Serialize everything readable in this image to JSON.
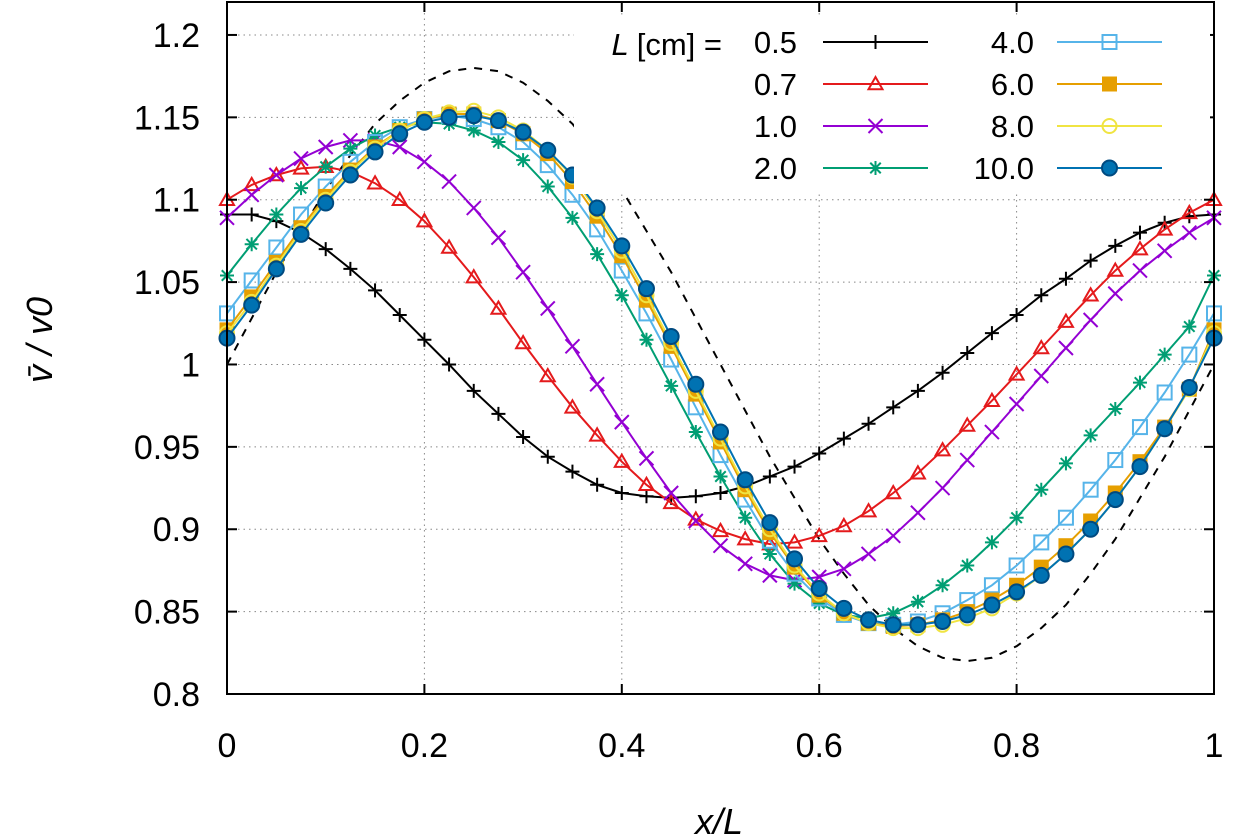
{
  "chart_data": {
    "type": "line",
    "xlabel": "x/L",
    "ylabel": "v̄ / v0",
    "xlim": [
      0,
      1
    ],
    "ylim": [
      0.8,
      1.22
    ],
    "xticks": [
      0,
      0.2,
      0.4,
      0.6,
      0.8,
      1
    ],
    "xtick_labels": [
      "0",
      "0.2",
      "0.4",
      "0.6",
      "0.8",
      "1"
    ],
    "yticks": [
      0.8,
      0.85,
      0.9,
      0.95,
      1,
      1.05,
      1.1,
      1.15,
      1.2
    ],
    "ytick_labels": [
      "0.8",
      "0.85",
      "0.9",
      "0.95",
      "1",
      "1.05",
      "1.1",
      "1.15",
      "1.2"
    ],
    "grid": true,
    "legend": {
      "title_var": "L",
      "title_unit": "[cm] =",
      "placement": "top-right"
    },
    "x": [
      0,
      0.025,
      0.05,
      0.075,
      0.1,
      0.125,
      0.15,
      0.175,
      0.2,
      0.225,
      0.25,
      0.275,
      0.3,
      0.325,
      0.35,
      0.375,
      0.4,
      0.425,
      0.45,
      0.475,
      0.5,
      0.525,
      0.55,
      0.575,
      0.6,
      0.625,
      0.65,
      0.675,
      0.7,
      0.725,
      0.75,
      0.775,
      0.8,
      0.825,
      0.85,
      0.875,
      0.9,
      0.925,
      0.95,
      0.975,
      1
    ],
    "reference": {
      "style": "dashed",
      "color": "#000000",
      "x": [
        0,
        0.025,
        0.05,
        0.075,
        0.1,
        0.125,
        0.15,
        0.175,
        0.2,
        0.225,
        0.25,
        0.275,
        0.3,
        0.325,
        0.35,
        0.375,
        0.4,
        0.425,
        0.45,
        0.475,
        0.5,
        0.525,
        0.55,
        0.575,
        0.6,
        0.625,
        0.65,
        0.675,
        0.7,
        0.725,
        0.75,
        0.775,
        0.8,
        0.825,
        0.85,
        0.875,
        0.9,
        0.925,
        0.95,
        0.975,
        1
      ],
      "values": [
        1.0,
        1.028,
        1.056,
        1.081,
        1.106,
        1.127,
        1.146,
        1.16,
        1.171,
        1.178,
        1.18,
        1.178,
        1.171,
        1.16,
        1.146,
        1.127,
        1.106,
        1.081,
        1.056,
        1.028,
        1.0,
        0.972,
        0.944,
        0.919,
        0.894,
        0.873,
        0.854,
        0.84,
        0.829,
        0.822,
        0.82,
        0.822,
        0.829,
        0.84,
        0.854,
        0.873,
        0.894,
        0.919,
        0.944,
        0.972,
        1.0
      ]
    },
    "series": [
      {
        "name": "0.5",
        "color": "#000000",
        "marker": "plus",
        "values": [
          1.091,
          1.091,
          1.087,
          1.08,
          1.07,
          1.058,
          1.045,
          1.03,
          1.015,
          1.0,
          0.984,
          0.97,
          0.956,
          0.944,
          0.935,
          0.927,
          0.922,
          0.92,
          0.919,
          0.92,
          0.922,
          0.926,
          0.932,
          0.938,
          0.946,
          0.955,
          0.964,
          0.974,
          0.984,
          0.995,
          1.007,
          1.019,
          1.03,
          1.042,
          1.052,
          1.063,
          1.072,
          1.08,
          1.086,
          1.09,
          1.091
        ]
      },
      {
        "name": "0.7",
        "color": "#e41a1c",
        "marker": "triangle",
        "values": [
          1.1,
          1.109,
          1.115,
          1.119,
          1.12,
          1.117,
          1.11,
          1.1,
          1.087,
          1.071,
          1.053,
          1.034,
          1.013,
          0.993,
          0.974,
          0.957,
          0.941,
          0.927,
          0.916,
          0.906,
          0.899,
          0.894,
          0.891,
          0.892,
          0.896,
          0.902,
          0.911,
          0.922,
          0.934,
          0.948,
          0.963,
          0.978,
          0.994,
          1.01,
          1.026,
          1.042,
          1.057,
          1.07,
          1.082,
          1.092,
          1.1
        ]
      },
      {
        "name": "1.0",
        "color": "#9400d3",
        "marker": "x",
        "values": [
          1.089,
          1.103,
          1.115,
          1.125,
          1.132,
          1.136,
          1.136,
          1.132,
          1.123,
          1.111,
          1.095,
          1.077,
          1.056,
          1.034,
          1.011,
          0.988,
          0.965,
          0.943,
          0.922,
          0.905,
          0.89,
          0.879,
          0.872,
          0.869,
          0.871,
          0.876,
          0.885,
          0.896,
          0.91,
          0.925,
          0.942,
          0.959,
          0.976,
          0.993,
          1.01,
          1.027,
          1.043,
          1.057,
          1.069,
          1.08,
          1.089
        ]
      },
      {
        "name": "2.0",
        "color": "#009e73",
        "marker": "asterisk",
        "values": [
          1.054,
          1.073,
          1.091,
          1.107,
          1.12,
          1.131,
          1.139,
          1.144,
          1.147,
          1.146,
          1.142,
          1.135,
          1.124,
          1.108,
          1.089,
          1.067,
          1.042,
          1.015,
          0.987,
          0.959,
          0.932,
          0.907,
          0.885,
          0.867,
          0.855,
          0.848,
          0.846,
          0.849,
          0.856,
          0.866,
          0.878,
          0.892,
          0.907,
          0.924,
          0.94,
          0.957,
          0.973,
          0.989,
          1.006,
          1.023,
          1.054
        ]
      },
      {
        "name": "4.0",
        "color": "#56b4e9",
        "marker": "square-open",
        "values": [
          1.031,
          1.051,
          1.071,
          1.091,
          1.108,
          1.123,
          1.135,
          1.144,
          1.149,
          1.151,
          1.149,
          1.144,
          1.135,
          1.121,
          1.103,
          1.082,
          1.057,
          1.031,
          1.003,
          0.974,
          0.945,
          0.918,
          0.893,
          0.873,
          0.858,
          0.848,
          0.843,
          0.842,
          0.844,
          0.849,
          0.857,
          0.866,
          0.878,
          0.892,
          0.907,
          0.924,
          0.942,
          0.962,
          0.983,
          1.006,
          1.031
        ]
      },
      {
        "name": "6.0",
        "color": "#e69f00",
        "marker": "square-filled",
        "values": [
          1.021,
          1.041,
          1.062,
          1.083,
          1.102,
          1.118,
          1.132,
          1.142,
          1.149,
          1.152,
          1.152,
          1.148,
          1.14,
          1.128,
          1.111,
          1.09,
          1.066,
          1.039,
          1.011,
          0.982,
          0.953,
          0.924,
          0.898,
          0.877,
          0.86,
          0.849,
          0.843,
          0.841,
          0.842,
          0.845,
          0.85,
          0.857,
          0.866,
          0.877,
          0.89,
          0.905,
          0.922,
          0.941,
          0.962,
          0.985,
          1.021
        ]
      },
      {
        "name": "8.0",
        "color": "#f0e442",
        "marker": "circle-open",
        "values": [
          1.019,
          1.038,
          1.06,
          1.081,
          1.1,
          1.117,
          1.131,
          1.142,
          1.149,
          1.153,
          1.154,
          1.15,
          1.142,
          1.13,
          1.114,
          1.093,
          1.069,
          1.042,
          1.013,
          0.984,
          0.955,
          0.926,
          0.9,
          0.878,
          0.861,
          0.849,
          0.843,
          0.84,
          0.84,
          0.842,
          0.846,
          0.852,
          0.861,
          0.872,
          0.885,
          0.9,
          0.918,
          0.938,
          0.961,
          0.985,
          1.019
        ]
      },
      {
        "name": "10.0",
        "color": "#0072b2",
        "marker": "circle-filled",
        "values": [
          1.016,
          1.036,
          1.058,
          1.079,
          1.098,
          1.115,
          1.129,
          1.14,
          1.147,
          1.15,
          1.151,
          1.148,
          1.141,
          1.13,
          1.115,
          1.095,
          1.072,
          1.046,
          1.017,
          0.988,
          0.959,
          0.93,
          0.904,
          0.882,
          0.864,
          0.852,
          0.845,
          0.842,
          0.842,
          0.844,
          0.848,
          0.854,
          0.862,
          0.872,
          0.885,
          0.9,
          0.918,
          0.938,
          0.961,
          0.986,
          1.016
        ]
      }
    ]
  }
}
